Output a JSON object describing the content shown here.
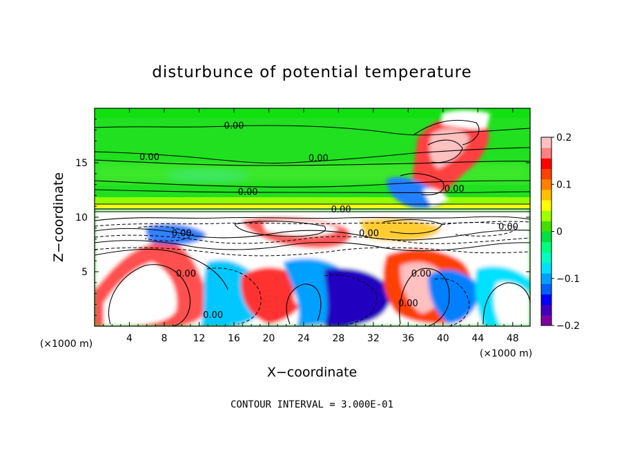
{
  "chart_data": {
    "type": "heatmap",
    "title": "disturbunce of potential temperature",
    "xlabel": "X−coordinate",
    "ylabel": "Z−coordinate",
    "x_unit": "(×1000 m)",
    "y_unit": "(×1000 m)",
    "xlim": [
      0,
      50
    ],
    "ylim": [
      0,
      20
    ],
    "x_ticks": [
      4,
      8,
      12,
      16,
      20,
      24,
      28,
      32,
      36,
      40,
      44,
      48
    ],
    "y_ticks": [
      5,
      10,
      15
    ],
    "colorbar": {
      "range": [
        -0.2,
        0.2
      ],
      "ticks": [
        "0.2",
        "0.1",
        "0",
        "−0.1",
        "−0.2"
      ],
      "tick_values": [
        0.2,
        0.1,
        0,
        -0.1,
        -0.2
      ],
      "colors": [
        "#8000a0",
        "#4000c0",
        "#0000ff",
        "#0060ff",
        "#00a0ff",
        "#00e0ff",
        "#00ffc0",
        "#00ff80",
        "#00e040",
        "#40e000",
        "#a0ff00",
        "#ffff00",
        "#ffc000",
        "#ff8000",
        "#ff4000",
        "#ff0000",
        "#ff8080",
        "#ffc0c0"
      ]
    },
    "contour_labels": [
      {
        "text": "0.00",
        "x": 31,
        "y": 20.3
      },
      {
        "text": "0.00",
        "x": 16,
        "y": 18.4
      },
      {
        "text": "0.00",
        "x": 6.3,
        "y": 15.5
      },
      {
        "text": "0.00",
        "x": 25.7,
        "y": 15.4
      },
      {
        "text": "0.00",
        "x": 17.6,
        "y": 12.3
      },
      {
        "text": "0.00",
        "x": 41.3,
        "y": 12.6
      },
      {
        "text": "0.00",
        "x": 28.3,
        "y": 10.7
      },
      {
        "text": "0.00",
        "x": 10,
        "y": 8.5
      },
      {
        "text": "0.00",
        "x": 31.5,
        "y": 8.5
      },
      {
        "text": "0.00",
        "x": 47.5,
        "y": 9.1
      },
      {
        "text": "0.00",
        "x": 10.5,
        "y": 4.8
      },
      {
        "text": "0.00",
        "x": 37.5,
        "y": 4.8
      },
      {
        "text": "0.00",
        "x": 36,
        "y": 2.1
      },
      {
        "text": "0.00",
        "x": 13.6,
        "y": 1.0
      }
    ],
    "footer": "CONTOUR INTERVAL = 3.000E-01",
    "grid": false
  }
}
